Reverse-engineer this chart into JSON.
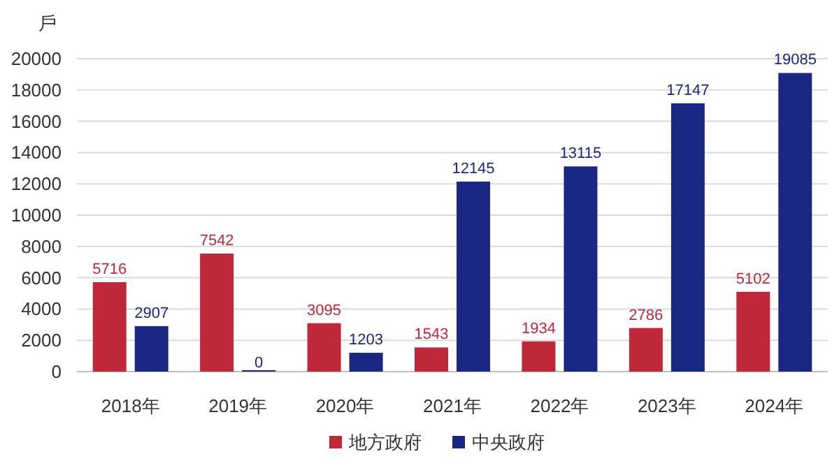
{
  "chart_data": {
    "type": "bar",
    "ylabel": "戶",
    "categories": [
      "2018年",
      "2019年",
      "2020年",
      "2021年",
      "2022年",
      "2023年",
      "2024年"
    ],
    "series": [
      {
        "name": "地方政府",
        "color": "#c0283a",
        "values": [
          5716,
          7542,
          3095,
          1543,
          1934,
          2786,
          5102
        ]
      },
      {
        "name": "中央政府",
        "color": "#1a2784",
        "values": [
          2907,
          0,
          1203,
          12145,
          13115,
          17147,
          19085
        ]
      }
    ],
    "ylim": [
      0,
      20000
    ],
    "yticks": [
      0,
      2000,
      4000,
      6000,
      8000,
      10000,
      12000,
      14000,
      16000,
      18000,
      20000
    ],
    "grid": "y",
    "legend": "bottom",
    "data_labels": true
  }
}
